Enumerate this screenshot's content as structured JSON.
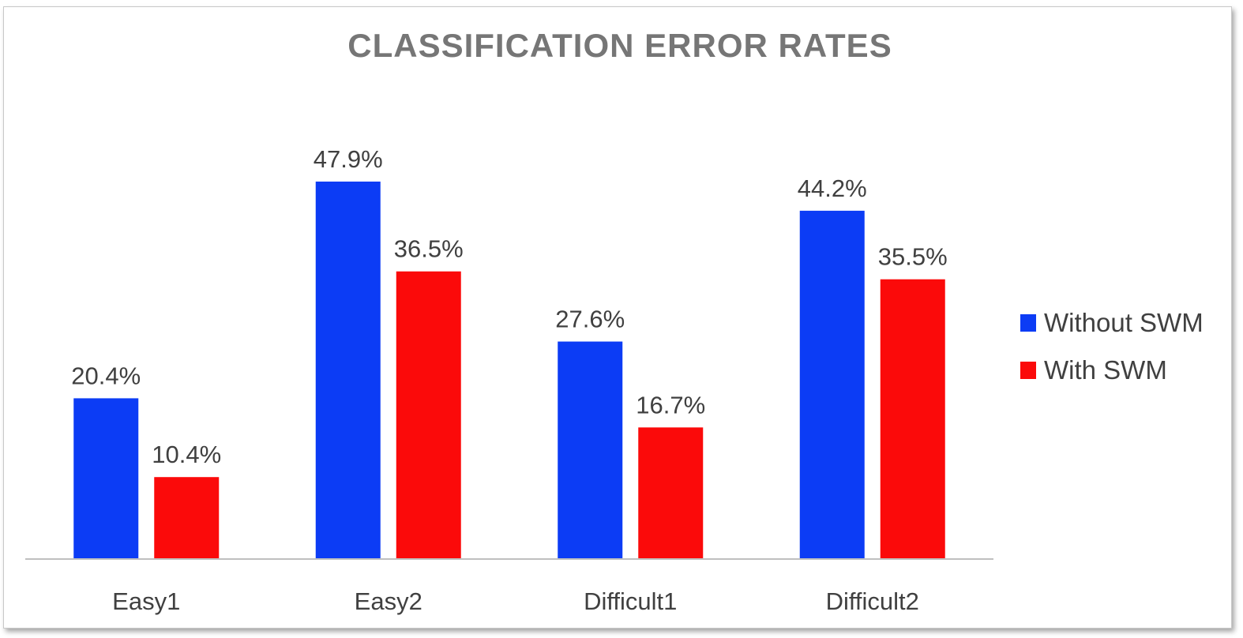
{
  "chart_data": {
    "type": "bar",
    "title": "CLASSIFICATION ERROR RATES",
    "xlabel": "",
    "ylabel": "",
    "categories": [
      "Easy1",
      "Easy2",
      "Difficult1",
      "Difficult2"
    ],
    "series": [
      {
        "name": "Without SWM",
        "color": "#0c3cf5",
        "values": [
          20.4,
          47.9,
          27.6,
          44.2
        ],
        "labels": [
          "20.4%",
          "47.9%",
          "27.6%",
          "44.2%"
        ]
      },
      {
        "name": "With SWM",
        "color": "#fb0a0a",
        "values": [
          10.4,
          36.5,
          16.7,
          35.5
        ],
        "labels": [
          "10.4%",
          "36.5%",
          "16.7%",
          "35.5%"
        ]
      }
    ],
    "ylim": [
      0,
      48
    ],
    "grid": false,
    "legend": "right"
  }
}
